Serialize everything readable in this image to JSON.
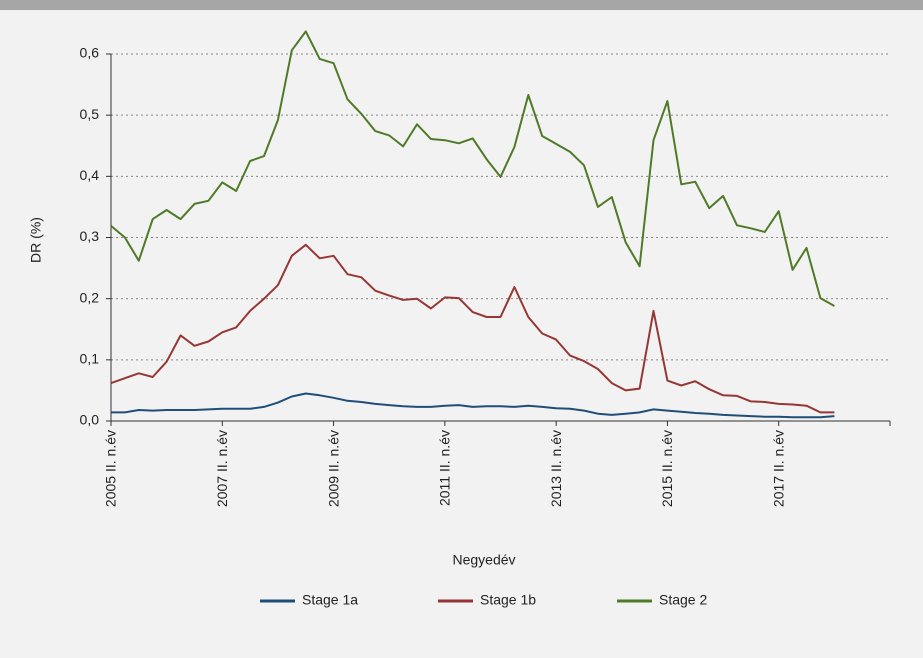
{
  "chart_data": {
    "type": "line",
    "x_label": "Negyedév",
    "y_label": "DR (%)",
    "categories": [
      "2005 II. n.év",
      null,
      null,
      null,
      null,
      null,
      null,
      null,
      "2007 II. n.év",
      null,
      null,
      null,
      null,
      null,
      null,
      null,
      "2009 II. n.év",
      null,
      null,
      null,
      null,
      null,
      null,
      null,
      "2011 II. n.év",
      null,
      null,
      null,
      null,
      null,
      null,
      null,
      "2013 II. n.év",
      null,
      null,
      null,
      null,
      null,
      null,
      null,
      "2015 II. n.év",
      null,
      null,
      null,
      null,
      null,
      null,
      null,
      "2017 II. n.év",
      null,
      null,
      null,
      null,
      null,
      null,
      null,
      null
    ],
    "series": [
      {
        "name": "Stage 1a",
        "color": "#1f4e79",
        "values": [
          0.014,
          0.014,
          0.018,
          0.017,
          0.018,
          0.018,
          0.018,
          0.019,
          0.02,
          0.02,
          0.02,
          0.023,
          0.03,
          0.04,
          0.045,
          0.042,
          0.038,
          0.033,
          0.031,
          0.028,
          0.026,
          0.024,
          0.023,
          0.023,
          0.025,
          0.026,
          0.023,
          0.024,
          0.024,
          0.023,
          0.025,
          0.023,
          0.021,
          0.02,
          0.017,
          0.012,
          0.01,
          0.012,
          0.014,
          0.019,
          0.017,
          0.015,
          0.013,
          0.012,
          0.01,
          0.009,
          0.008,
          0.007,
          0.007,
          0.006,
          0.006,
          0.006,
          0.008,
          null,
          null,
          null,
          null
        ]
      },
      {
        "name": "Stage 1b",
        "color": "#953735",
        "values": [
          0.062,
          0.07,
          0.078,
          0.072,
          0.097,
          0.14,
          0.123,
          0.13,
          0.145,
          0.153,
          0.18,
          0.2,
          0.222,
          0.27,
          0.288,
          0.266,
          0.27,
          0.24,
          0.235,
          0.213,
          0.205,
          0.198,
          0.2,
          0.184,
          0.202,
          0.201,
          0.178,
          0.17,
          0.17,
          0.219,
          0.17,
          0.143,
          0.133,
          0.107,
          0.098,
          0.085,
          0.062,
          0.05,
          0.053,
          0.18,
          0.066,
          0.058,
          0.065,
          0.052,
          0.042,
          0.041,
          0.032,
          0.031,
          0.028,
          0.027,
          0.025,
          0.014,
          0.014,
          null,
          null,
          null,
          null
        ]
      },
      {
        "name": "Stage 2",
        "color": "#4f7a28",
        "values": [
          0.319,
          0.3,
          0.262,
          0.33,
          0.345,
          0.33,
          0.355,
          0.36,
          0.39,
          0.376,
          0.425,
          0.433,
          0.492,
          0.606,
          0.637,
          0.592,
          0.585,
          0.526,
          0.502,
          0.474,
          0.467,
          0.449,
          0.485,
          0.461,
          0.459,
          0.454,
          0.462,
          0.428,
          0.399,
          0.448,
          0.533,
          0.466,
          0.453,
          0.44,
          0.418,
          0.35,
          0.366,
          0.292,
          0.253,
          0.459,
          0.523,
          0.387,
          0.391,
          0.348,
          0.368,
          0.32,
          0.315,
          0.309,
          0.343,
          0.247,
          0.283,
          0.201,
          0.188,
          null,
          null,
          null,
          null
        ]
      }
    ],
    "ylim": [
      0,
      0.6
    ],
    "yticks": [
      {
        "value": 0,
        "label": "0,0"
      },
      {
        "value": 0.1,
        "label": "0,1"
      },
      {
        "value": 0.2,
        "label": "0,2"
      },
      {
        "value": 0.3,
        "label": "0,3"
      },
      {
        "value": 0.4,
        "label": "0,4"
      },
      {
        "value": 0.5,
        "label": "0,5"
      },
      {
        "value": 0.6,
        "label": "0,6"
      }
    ],
    "grid": true
  }
}
